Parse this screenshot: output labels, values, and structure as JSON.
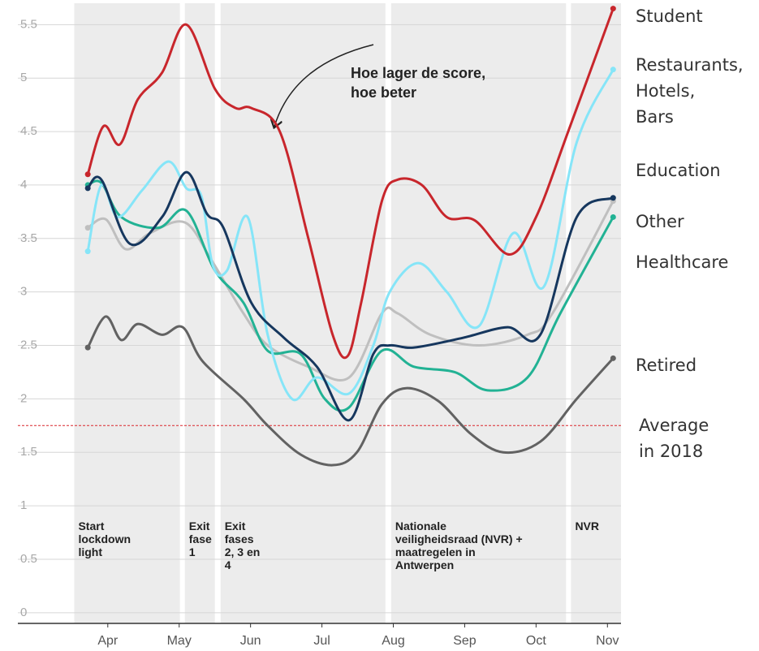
{
  "chart_data": {
    "type": "line",
    "annotation": "Hoe lager de score,\nhoe beter",
    "xlim": [
      2.74,
      11.19
    ],
    "xticks": [
      {
        "value": 4,
        "label": "Apr"
      },
      {
        "value": 5,
        "label": "May"
      },
      {
        "value": 6,
        "label": "Jun"
      },
      {
        "value": 7,
        "label": "Jul"
      },
      {
        "value": 8,
        "label": "Aug"
      },
      {
        "value": 9,
        "label": "Sep"
      },
      {
        "value": 10,
        "label": "Oct"
      },
      {
        "value": 11,
        "label": "Nov"
      }
    ],
    "ylim": [
      -0.1,
      5.7
    ],
    "yticks": [
      0,
      0.5,
      1,
      1.5,
      2,
      2.5,
      3,
      3.5,
      4,
      4.5,
      5,
      5.5
    ],
    "grid": true,
    "reference": {
      "label": "Average\nin 2018",
      "value": 1.75,
      "color": "#d9262c"
    },
    "phases": [
      {
        "label": "Start\nlockdown\nlight",
        "start": 3.53,
        "end": 5.01
      },
      {
        "label": "Exit\nfase\n1",
        "start": 5.08,
        "end": 5.5
      },
      {
        "label": "Exit\nfases\n2, 3 en\n4",
        "start": 5.58,
        "end": 7.89
      },
      {
        "label": "Nationale\nveiligheidsraad (NVR) +\nmaatregelen in\nAntwerpen",
        "start": 7.97,
        "end": 10.42
      },
      {
        "label": "NVR",
        "start": 10.49,
        "end": 11.19
      }
    ],
    "series": [
      {
        "name": "Student",
        "color": "#c8262c",
        "x": [
          3.72,
          3.94,
          4.17,
          4.42,
          4.76,
          5.1,
          5.5,
          5.79,
          6.01,
          6.41,
          6.81,
          7.15,
          7.36,
          7.55,
          7.84,
          8.06,
          8.4,
          8.75,
          9.14,
          9.63,
          10.0,
          10.45,
          11.08
        ],
        "values": [
          4.1,
          4.55,
          4.38,
          4.8,
          5.05,
          5.5,
          4.9,
          4.72,
          4.72,
          4.5,
          3.5,
          2.6,
          2.4,
          2.9,
          3.85,
          4.05,
          4.0,
          3.7,
          3.67,
          3.35,
          3.7,
          4.5,
          5.65
        ]
      },
      {
        "name": "Restaurants,\nHotels,\nBars",
        "color": "#86e5f8",
        "x": [
          3.72,
          3.91,
          4.14,
          4.48,
          4.85,
          5.1,
          5.31,
          5.47,
          5.67,
          5.96,
          6.24,
          6.58,
          6.93,
          7.38,
          7.72,
          7.95,
          8.35,
          8.75,
          9.2,
          9.68,
          10.11,
          10.57,
          11.08
        ],
        "values": [
          3.38,
          4.0,
          3.7,
          3.95,
          4.22,
          3.97,
          3.9,
          3.25,
          3.2,
          3.7,
          2.6,
          2.0,
          2.2,
          2.05,
          2.5,
          3.0,
          3.27,
          3.0,
          2.68,
          3.55,
          3.05,
          4.4,
          5.08
        ]
      },
      {
        "name": "Education",
        "color": "#16375e",
        "x": [
          3.72,
          3.91,
          4.31,
          4.76,
          5.1,
          5.39,
          5.62,
          6.01,
          6.47,
          6.93,
          7.38,
          7.72,
          7.95,
          8.29,
          8.97,
          9.6,
          10.06,
          10.57,
          11.08
        ],
        "values": [
          3.97,
          4.05,
          3.45,
          3.7,
          4.12,
          3.73,
          3.6,
          2.9,
          2.57,
          2.3,
          1.8,
          2.42,
          2.5,
          2.48,
          2.57,
          2.67,
          2.6,
          3.7,
          3.88
        ]
      },
      {
        "name": "Other",
        "color": "#bfbfbf",
        "x": [
          3.72,
          3.97,
          4.25,
          4.59,
          5.08,
          5.45,
          5.9,
          6.24,
          6.81,
          7.38,
          7.84,
          8.06,
          8.52,
          9.2,
          9.88,
          10.23,
          11.08
        ],
        "values": [
          3.6,
          3.68,
          3.4,
          3.55,
          3.65,
          3.3,
          2.8,
          2.5,
          2.3,
          2.2,
          2.8,
          2.8,
          2.6,
          2.5,
          2.6,
          2.8,
          3.85
        ]
      },
      {
        "name": "Healthcare",
        "color": "#22b294",
        "x": [
          3.72,
          3.91,
          4.19,
          4.71,
          5.1,
          5.5,
          5.9,
          6.24,
          6.7,
          7.04,
          7.38,
          7.84,
          8.29,
          8.86,
          9.32,
          9.88,
          10.34,
          11.08
        ],
        "values": [
          4.0,
          4.02,
          3.7,
          3.6,
          3.76,
          3.2,
          2.9,
          2.45,
          2.42,
          2.0,
          1.92,
          2.45,
          2.3,
          2.25,
          2.08,
          2.2,
          2.8,
          3.7
        ]
      },
      {
        "name": "Retired",
        "color": "#626262",
        "x": [
          3.72,
          3.97,
          4.19,
          4.42,
          4.76,
          5.05,
          5.33,
          5.9,
          6.24,
          6.7,
          7.15,
          7.49,
          7.84,
          8.18,
          8.63,
          9.09,
          9.54,
          10.06,
          10.57,
          11.08
        ],
        "values": [
          2.48,
          2.77,
          2.55,
          2.7,
          2.6,
          2.67,
          2.35,
          2.0,
          1.75,
          1.48,
          1.38,
          1.5,
          1.95,
          2.1,
          1.98,
          1.67,
          1.5,
          1.6,
          2.0,
          2.38
        ]
      }
    ]
  }
}
